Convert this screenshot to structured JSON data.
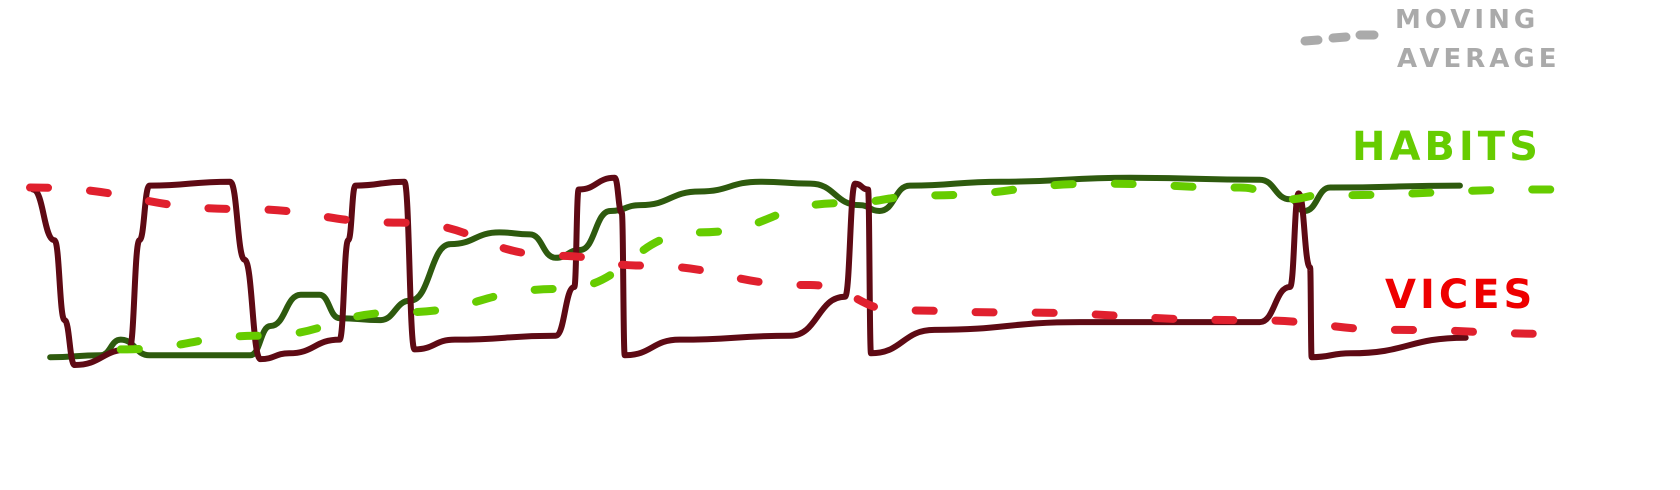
{
  "chart_data": {
    "type": "line",
    "title": "",
    "xlabel": "",
    "ylabel": "",
    "xlim": [
      0,
      106
    ],
    "ylim": [
      0,
      1
    ],
    "grid": false,
    "axes_visible": false,
    "legend": {
      "placement": "top-right",
      "label_line1": "MOVING",
      "label_line2": "AVERAGE",
      "color": "#aaaaaa"
    },
    "series": [
      {
        "name": "VICES",
        "color": "#5e0a14",
        "label_color": "#ee0000",
        "style": "solid",
        "x": [
          0.2,
          1.7,
          2.4,
          3.1,
          6.9,
          7.6,
          8.3,
          13.9,
          14.9,
          16,
          18,
          21.5,
          22.1,
          22.6,
          26,
          26.7,
          29.5,
          36.5,
          37.8,
          38.1,
          40.6,
          41.1,
          41.3,
          45.1,
          52.8,
          56.6,
          57.3,
          58.2,
          58.4,
          62.8,
          72.9,
          85.4,
          87.5,
          88.1,
          88.9,
          89,
          91.7,
          99.7
        ],
        "y": [
          0.9,
          0.64,
          0.23,
          0,
          0.08,
          0.64,
          0.92,
          0.94,
          0.54,
          0.03,
          0.06,
          0.13,
          0.64,
          0.92,
          0.94,
          0.08,
          0.13,
          0.15,
          0.4,
          0.9,
          0.96,
          0.78,
          0.05,
          0.13,
          0.15,
          0.35,
          0.93,
          0.9,
          0.06,
          0.18,
          0.22,
          0.22,
          0.4,
          0.88,
          0.5,
          0.04,
          0.06,
          0.14
        ]
      },
      {
        "name": "HABITS",
        "color": "#2e5a0e",
        "label_color": "#66cc00",
        "style": "solid",
        "x": [
          1.4,
          4.9,
          6.3,
          8.3,
          15.3,
          16.7,
          18.8,
          20.1,
          21.5,
          24.3,
          26.4,
          29.2,
          32.6,
          34.7,
          36.5,
          38.2,
          40.3,
          42.4,
          46.5,
          50.7,
          54.2,
          57.6,
          59,
          61.1,
          67.4,
          76.4,
          85.4,
          87.5,
          88.5,
          90.3,
          99.3
        ],
        "y": [
          0.04,
          0.05,
          0.13,
          0.05,
          0.05,
          0.2,
          0.36,
          0.36,
          0.24,
          0.23,
          0.33,
          0.62,
          0.68,
          0.67,
          0.55,
          0.59,
          0.79,
          0.82,
          0.89,
          0.94,
          0.93,
          0.82,
          0.79,
          0.92,
          0.94,
          0.96,
          0.95,
          0.85,
          0.79,
          0.91,
          0.92
        ]
      },
      {
        "name": "VICES moving average",
        "color": "#e0202e",
        "style": "dashed",
        "x": [
          0,
          14.6,
          25.7,
          36.8,
          42.4,
          54.2,
          60.4,
          67.4,
          84.7,
          95.1,
          105.6
        ],
        "y": [
          0.91,
          0.8,
          0.73,
          0.56,
          0.51,
          0.41,
          0.28,
          0.27,
          0.23,
          0.18,
          0.16
        ]
      },
      {
        "name": "HABITS moving average",
        "color": "#66cc00",
        "style": "dashed",
        "x": [
          6.3,
          16,
          25.7,
          36.8,
          46.5,
          56.3,
          62.5,
          74.3,
          84,
          87.5,
          89.6,
          105.6
        ],
        "y": [
          0.08,
          0.15,
          0.27,
          0.39,
          0.68,
          0.83,
          0.87,
          0.93,
          0.91,
          0.85,
          0.87,
          0.9
        ]
      }
    ],
    "labels": {
      "habits": "HABITS",
      "vices": "VICES"
    }
  }
}
